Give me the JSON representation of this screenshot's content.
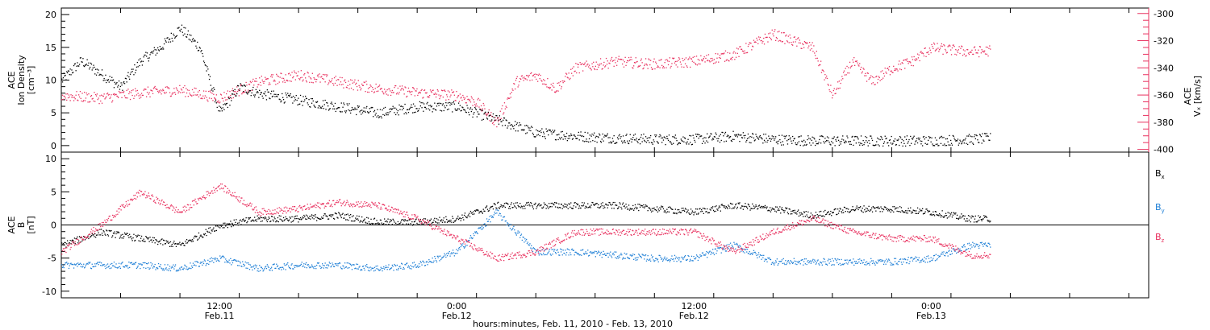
{
  "colors": {
    "black": "#000000",
    "pink": "#e8315f",
    "blue": "#1e7fd6"
  },
  "xlabel": "hours:minutes, Feb. 11, 2010 - Feb. 13, 2010",
  "x_ticks": [
    {
      "time": "12:00",
      "date": "Feb.11"
    },
    {
      "time": "0:00",
      "date": "Feb.12"
    },
    {
      "time": "12:00",
      "date": "Feb.12"
    },
    {
      "time": "0:00",
      "date": "Feb.13"
    }
  ],
  "chart_data": [
    {
      "type": "scatter",
      "panel": "top",
      "ylabel_left": [
        "ACE",
        "Ion Density",
        "[cm⁻³]"
      ],
      "ylabel_right": [
        "ACE",
        "Vₓ [km/s]"
      ],
      "xlim": [
        "2010-02-11 04:00",
        "2010-02-13 11:00"
      ],
      "ylim_left": [
        -1,
        21
      ],
      "yticks_left": [
        0,
        5,
        10,
        15,
        20
      ],
      "ylim_right": [
        -402,
        -296
      ],
      "yticks_right": [
        -300,
        -320,
        -340,
        -360,
        -380,
        -400
      ],
      "grid": false,
      "series": [
        {
          "name": "Ion Density",
          "axis": "left",
          "color": "black",
          "points": [
            {
              "x": "2010-02-11 04:00",
              "y": 10
            },
            {
              "x": "2010-02-11 05:00",
              "y": 13
            },
            {
              "x": "2010-02-11 06:00",
              "y": 11
            },
            {
              "x": "2010-02-11 07:00",
              "y": 9
            },
            {
              "x": "2010-02-11 08:00",
              "y": 13
            },
            {
              "x": "2010-02-11 09:00",
              "y": 15
            },
            {
              "x": "2010-02-11 10:00",
              "y": 18
            },
            {
              "x": "2010-02-11 11:00",
              "y": 15
            },
            {
              "x": "2010-02-11 12:00",
              "y": 5
            },
            {
              "x": "2010-02-11 13:00",
              "y": 9
            },
            {
              "x": "2010-02-11 14:00",
              "y": 8
            },
            {
              "x": "2010-02-11 16:00",
              "y": 7
            },
            {
              "x": "2010-02-11 18:00",
              "y": 6
            },
            {
              "x": "2010-02-11 20:00",
              "y": 5
            },
            {
              "x": "2010-02-11 22:00",
              "y": 6
            },
            {
              "x": "2010-02-12 00:00",
              "y": 6
            },
            {
              "x": "2010-02-12 02:00",
              "y": 4
            },
            {
              "x": "2010-02-12 04:00",
              "y": 2
            },
            {
              "x": "2010-02-12 06:00",
              "y": 1.5
            },
            {
              "x": "2010-02-12 08:00",
              "y": 1.2
            },
            {
              "x": "2010-02-12 10:00",
              "y": 1
            },
            {
              "x": "2010-02-12 12:00",
              "y": 1
            },
            {
              "x": "2010-02-12 14:00",
              "y": 1.5
            },
            {
              "x": "2010-02-12 16:00",
              "y": 1
            },
            {
              "x": "2010-02-12 18:00",
              "y": 0.8
            },
            {
              "x": "2010-02-12 20:00",
              "y": 0.8
            },
            {
              "x": "2010-02-12 22:00",
              "y": 0.8
            },
            {
              "x": "2010-02-13 00:00",
              "y": 0.8
            },
            {
              "x": "2010-02-13 02:00",
              "y": 1
            },
            {
              "x": "2010-02-13 03:00",
              "y": 1.2
            }
          ]
        },
        {
          "name": "Vx",
          "axis": "right",
          "color": "pink",
          "points": [
            {
              "x": "2010-02-11 04:00",
              "y": -360
            },
            {
              "x": "2010-02-11 06:00",
              "y": -362
            },
            {
              "x": "2010-02-11 08:00",
              "y": -358
            },
            {
              "x": "2010-02-11 10:00",
              "y": -356
            },
            {
              "x": "2010-02-11 12:00",
              "y": -362
            },
            {
              "x": "2010-02-11 14:00",
              "y": -350
            },
            {
              "x": "2010-02-11 16:00",
              "y": -345
            },
            {
              "x": "2010-02-11 18:00",
              "y": -350
            },
            {
              "x": "2010-02-11 20:00",
              "y": -355
            },
            {
              "x": "2010-02-11 22:00",
              "y": -358
            },
            {
              "x": "2010-02-12 00:00",
              "y": -360
            },
            {
              "x": "2010-02-12 01:00",
              "y": -365
            },
            {
              "x": "2010-02-12 02:00",
              "y": -380
            },
            {
              "x": "2010-02-12 03:00",
              "y": -350
            },
            {
              "x": "2010-02-12 04:00",
              "y": -345
            },
            {
              "x": "2010-02-12 05:00",
              "y": -355
            },
            {
              "x": "2010-02-12 06:00",
              "y": -340
            },
            {
              "x": "2010-02-12 08:00",
              "y": -335
            },
            {
              "x": "2010-02-12 10:00",
              "y": -337
            },
            {
              "x": "2010-02-12 12:00",
              "y": -335
            },
            {
              "x": "2010-02-12 14:00",
              "y": -330
            },
            {
              "x": "2010-02-12 16:00",
              "y": -315
            },
            {
              "x": "2010-02-12 18:00",
              "y": -325
            },
            {
              "x": "2010-02-12 19:00",
              "y": -360
            },
            {
              "x": "2010-02-12 20:00",
              "y": -335
            },
            {
              "x": "2010-02-12 21:00",
              "y": -350
            },
            {
              "x": "2010-02-12 22:00",
              "y": -340
            },
            {
              "x": "2010-02-12 23:00",
              "y": -335
            },
            {
              "x": "2010-02-13 00:00",
              "y": -325
            },
            {
              "x": "2010-02-13 02:00",
              "y": -328
            },
            {
              "x": "2010-02-13 03:00",
              "y": -327
            }
          ]
        }
      ]
    },
    {
      "type": "scatter",
      "panel": "bottom",
      "ylabel_left": [
        "ACE",
        "B",
        "[nT]"
      ],
      "xlim": [
        "2010-02-11 04:00",
        "2010-02-13 11:00"
      ],
      "ylim": [
        -11,
        11
      ],
      "yticks": [
        -10,
        -5,
        0,
        5,
        10
      ],
      "zero_line": true,
      "grid": false,
      "legend": [
        "Bx",
        "By",
        "Bz"
      ],
      "legend_position": "right",
      "series": [
        {
          "name": "Bx",
          "color": "black",
          "points": [
            {
              "x": "2010-02-11 04:00",
              "y": -3
            },
            {
              "x": "2010-02-11 06:00",
              "y": -1
            },
            {
              "x": "2010-02-11 08:00",
              "y": -2
            },
            {
              "x": "2010-02-11 10:00",
              "y": -3
            },
            {
              "x": "2010-02-11 12:00",
              "y": 0
            },
            {
              "x": "2010-02-11 14:00",
              "y": 1
            },
            {
              "x": "2010-02-11 16:00",
              "y": 1
            },
            {
              "x": "2010-02-11 18:00",
              "y": 1.5
            },
            {
              "x": "2010-02-11 20:00",
              "y": 0.5
            },
            {
              "x": "2010-02-11 22:00",
              "y": 0.5
            },
            {
              "x": "2010-02-12 00:00",
              "y": 1
            },
            {
              "x": "2010-02-12 02:00",
              "y": 3
            },
            {
              "x": "2010-02-12 04:00",
              "y": 3
            },
            {
              "x": "2010-02-12 06:00",
              "y": 3
            },
            {
              "x": "2010-02-12 08:00",
              "y": 3
            },
            {
              "x": "2010-02-12 10:00",
              "y": 2.5
            },
            {
              "x": "2010-02-12 12:00",
              "y": 2
            },
            {
              "x": "2010-02-12 14:00",
              "y": 3
            },
            {
              "x": "2010-02-12 16:00",
              "y": 2.5
            },
            {
              "x": "2010-02-12 18:00",
              "y": 1.5
            },
            {
              "x": "2010-02-12 20:00",
              "y": 2.5
            },
            {
              "x": "2010-02-12 22:00",
              "y": 2.5
            },
            {
              "x": "2010-02-13 00:00",
              "y": 2
            },
            {
              "x": "2010-02-13 02:00",
              "y": 1
            },
            {
              "x": "2010-02-13 03:00",
              "y": 1
            }
          ]
        },
        {
          "name": "By",
          "color": "blue",
          "points": [
            {
              "x": "2010-02-11 04:00",
              "y": -6
            },
            {
              "x": "2010-02-11 06:00",
              "y": -6
            },
            {
              "x": "2010-02-11 08:00",
              "y": -6
            },
            {
              "x": "2010-02-11 10:00",
              "y": -6.5
            },
            {
              "x": "2010-02-11 12:00",
              "y": -5
            },
            {
              "x": "2010-02-11 14:00",
              "y": -6.5
            },
            {
              "x": "2010-02-11 16:00",
              "y": -6
            },
            {
              "x": "2010-02-11 18:00",
              "y": -6
            },
            {
              "x": "2010-02-11 20:00",
              "y": -6.5
            },
            {
              "x": "2010-02-11 22:00",
              "y": -6
            },
            {
              "x": "2010-02-12 00:00",
              "y": -4
            },
            {
              "x": "2010-02-12 02:00",
              "y": 2
            },
            {
              "x": "2010-02-12 04:00",
              "y": -4
            },
            {
              "x": "2010-02-12 06:00",
              "y": -4
            },
            {
              "x": "2010-02-12 08:00",
              "y": -4.5
            },
            {
              "x": "2010-02-12 10:00",
              "y": -5
            },
            {
              "x": "2010-02-12 12:00",
              "y": -5
            },
            {
              "x": "2010-02-12 14:00",
              "y": -3
            },
            {
              "x": "2010-02-12 16:00",
              "y": -5.5
            },
            {
              "x": "2010-02-12 18:00",
              "y": -5.5
            },
            {
              "x": "2010-02-12 20:00",
              "y": -5.5
            },
            {
              "x": "2010-02-12 22:00",
              "y": -5.5
            },
            {
              "x": "2010-02-13 00:00",
              "y": -5
            },
            {
              "x": "2010-02-13 02:00",
              "y": -3
            },
            {
              "x": "2010-02-13 03:00",
              "y": -3
            }
          ]
        },
        {
          "name": "Bz",
          "color": "pink",
          "points": [
            {
              "x": "2010-02-11 04:00",
              "y": -4
            },
            {
              "x": "2010-02-11 06:00",
              "y": 0
            },
            {
              "x": "2010-02-11 08:00",
              "y": 5
            },
            {
              "x": "2010-02-11 10:00",
              "y": 2
            },
            {
              "x": "2010-02-11 12:00",
              "y": 6
            },
            {
              "x": "2010-02-11 14:00",
              "y": 2
            },
            {
              "x": "2010-02-11 16:00",
              "y": 2.5
            },
            {
              "x": "2010-02-11 18:00",
              "y": 3.5
            },
            {
              "x": "2010-02-11 20:00",
              "y": 3
            },
            {
              "x": "2010-02-11 22:00",
              "y": 1
            },
            {
              "x": "2010-02-12 00:00",
              "y": -2
            },
            {
              "x": "2010-02-12 02:00",
              "y": -5
            },
            {
              "x": "2010-02-12 04:00",
              "y": -4
            },
            {
              "x": "2010-02-12 06:00",
              "y": -1
            },
            {
              "x": "2010-02-12 08:00",
              "y": -1
            },
            {
              "x": "2010-02-12 10:00",
              "y": -1
            },
            {
              "x": "2010-02-12 12:00",
              "y": -1
            },
            {
              "x": "2010-02-12 14:00",
              "y": -4
            },
            {
              "x": "2010-02-12 16:00",
              "y": -1
            },
            {
              "x": "2010-02-12 18:00",
              "y": 1
            },
            {
              "x": "2010-02-12 20:00",
              "y": -1
            },
            {
              "x": "2010-02-12 22:00",
              "y": -2
            },
            {
              "x": "2010-02-13 00:00",
              "y": -2
            },
            {
              "x": "2010-02-13 02:00",
              "y": -4.5
            },
            {
              "x": "2010-02-13 03:00",
              "y": -4.5
            }
          ]
        }
      ]
    }
  ]
}
